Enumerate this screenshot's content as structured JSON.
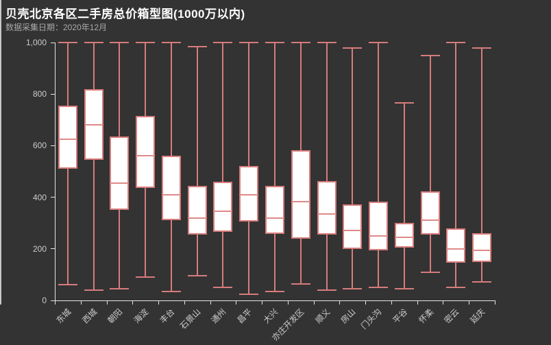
{
  "colors": {
    "background": "#333333",
    "box_stroke": "#d87c7c",
    "box_fill": "#ffffff",
    "median_color": "#dd8a88",
    "axis_line": "#e6e6e6",
    "axis_label": "#cccccc",
    "title_color": "#ffffff",
    "subtitle_color": "#aaaaaa"
  },
  "chart_data": {
    "type": "boxplot",
    "title": "贝壳北京各区二手房总价箱型图(1000万以内)",
    "subtitle": "数据采集日期：2020年12月",
    "xlabel": "",
    "ylabel": "",
    "ylim": [
      0,
      1000
    ],
    "yticks": [
      0,
      200,
      400,
      600,
      800,
      1000
    ],
    "ytick_labels": [
      "0",
      "200",
      "400",
      "600",
      "800",
      "1,000"
    ],
    "grid": false,
    "legend": false,
    "categories": [
      "东城",
      "西城",
      "朝阳",
      "海淀",
      "丰台",
      "石景山",
      "通州",
      "昌平",
      "大兴",
      "亦庄开发区",
      "顺义",
      "房山",
      "门头沟",
      "平谷",
      "怀柔",
      "密云",
      "延庆"
    ],
    "values_order": [
      "min",
      "q1",
      "median",
      "q3",
      "max"
    ],
    "values": [
      [
        60,
        510,
        625,
        755,
        1000
      ],
      [
        40,
        545,
        680,
        820,
        1000
      ],
      [
        45,
        350,
        455,
        635,
        1000
      ],
      [
        90,
        435,
        560,
        715,
        1000
      ],
      [
        35,
        310,
        410,
        560,
        1000
      ],
      [
        95,
        255,
        320,
        445,
        985
      ],
      [
        50,
        265,
        345,
        460,
        1000
      ],
      [
        25,
        305,
        410,
        520,
        1000
      ],
      [
        35,
        258,
        320,
        443,
        1000
      ],
      [
        65,
        240,
        383,
        583,
        1000
      ],
      [
        40,
        255,
        334,
        462,
        1000
      ],
      [
        45,
        200,
        270,
        372,
        980
      ],
      [
        50,
        193,
        250,
        382,
        1000
      ],
      [
        45,
        205,
        246,
        300,
        765
      ],
      [
        110,
        255,
        310,
        423,
        950
      ],
      [
        50,
        145,
        200,
        280,
        1000
      ],
      [
        72,
        150,
        195,
        260,
        980
      ]
    ]
  }
}
